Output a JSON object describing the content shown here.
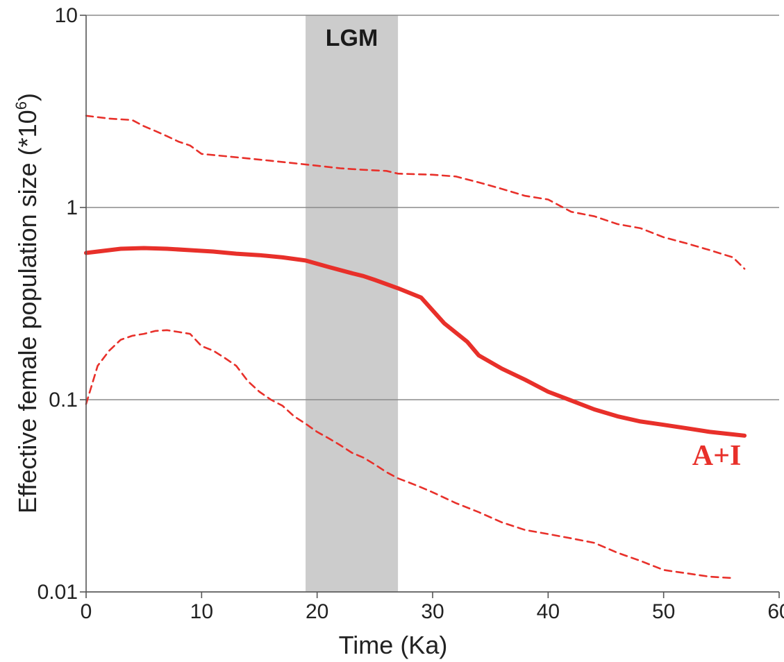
{
  "chart_data": {
    "type": "line",
    "title": "",
    "xlabel": "Time (Ka)",
    "ylabel": "Effective female population size (*10",
    "ylabel_superscript": "6",
    "ylabel_suffix": ")",
    "xlim": [
      0,
      60
    ],
    "ylim": [
      0.01,
      10
    ],
    "yscale": "log",
    "x_ticks": [
      0,
      10,
      20,
      30,
      40,
      50,
      60
    ],
    "x_tick_labels": [
      "0",
      "10",
      "20",
      "30",
      "40",
      "50",
      "60"
    ],
    "y_ticks": [
      0.01,
      0.1,
      1,
      10
    ],
    "y_tick_labels": [
      "0.01",
      "0.1",
      "1",
      "10"
    ],
    "grid": "horizontal",
    "shaded_band": {
      "label": "LGM",
      "x_start": 19,
      "x_end": 27,
      "color": "#cccccc"
    },
    "series_label": "A+I",
    "color": "#e8302a",
    "series": [
      {
        "name": "A+I",
        "style": "solid",
        "x": [
          0,
          1,
          2,
          3,
          5,
          7,
          9,
          11,
          13,
          15,
          17,
          19,
          21,
          23,
          24,
          25,
          27,
          29,
          31,
          33,
          34,
          36,
          38,
          40,
          42,
          44,
          46,
          48,
          50,
          52,
          54,
          56,
          57
        ],
        "y": [
          0.58,
          0.59,
          0.6,
          0.61,
          0.615,
          0.61,
          0.6,
          0.59,
          0.575,
          0.565,
          0.55,
          0.53,
          0.49,
          0.455,
          0.44,
          0.42,
          0.38,
          0.34,
          0.25,
          0.2,
          0.17,
          0.145,
          0.127,
          0.11,
          0.099,
          0.089,
          0.082,
          0.077,
          0.074,
          0.071,
          0.068,
          0.066,
          0.065
        ]
      },
      {
        "name": "upper",
        "style": "dashed",
        "x": [
          0,
          2,
          4,
          5,
          6,
          7,
          8,
          9,
          10,
          12,
          14,
          16,
          18,
          20,
          22,
          24,
          26,
          27,
          30,
          32,
          34,
          36,
          38,
          40,
          42,
          44,
          46,
          48,
          50,
          52,
          54,
          56,
          57
        ],
        "y": [
          3.0,
          2.9,
          2.85,
          2.65,
          2.5,
          2.35,
          2.2,
          2.1,
          1.9,
          1.85,
          1.8,
          1.75,
          1.7,
          1.65,
          1.6,
          1.57,
          1.55,
          1.5,
          1.48,
          1.45,
          1.35,
          1.25,
          1.15,
          1.1,
          0.95,
          0.9,
          0.82,
          0.78,
          0.7,
          0.65,
          0.6,
          0.55,
          0.48
        ]
      },
      {
        "name": "lower",
        "style": "dashed",
        "x": [
          0,
          1,
          2,
          3,
          4,
          5,
          6,
          7,
          8,
          9,
          10,
          11,
          12,
          13,
          14,
          15,
          16,
          17,
          18,
          19,
          20,
          21,
          22,
          23,
          24,
          25,
          26,
          27,
          28,
          29,
          30,
          32,
          34,
          36,
          38,
          40,
          42,
          44,
          46,
          48,
          50,
          52,
          54,
          56
        ],
        "y": [
          0.095,
          0.15,
          0.18,
          0.205,
          0.215,
          0.22,
          0.228,
          0.23,
          0.225,
          0.22,
          0.19,
          0.18,
          0.165,
          0.15,
          0.125,
          0.11,
          0.1,
          0.093,
          0.082,
          0.075,
          0.068,
          0.063,
          0.058,
          0.053,
          0.05,
          0.046,
          0.042,
          0.039,
          0.037,
          0.035,
          0.033,
          0.029,
          0.026,
          0.023,
          0.021,
          0.02,
          0.019,
          0.018,
          0.016,
          0.0145,
          0.013,
          0.0125,
          0.012,
          0.0118
        ]
      }
    ]
  }
}
